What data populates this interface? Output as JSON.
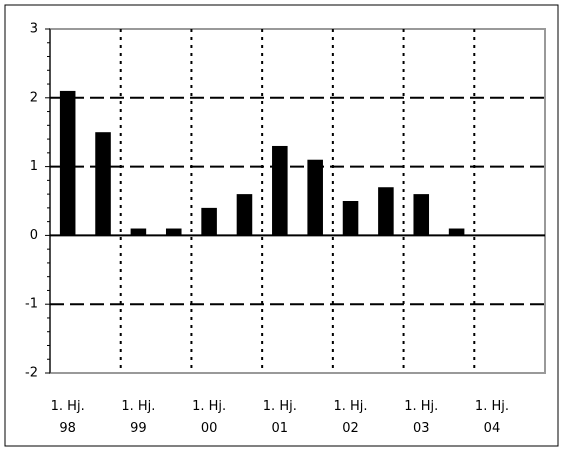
{
  "chart_data": {
    "type": "bar",
    "categories": [
      "1. Hj.\n98",
      null,
      "1. Hj.\n99",
      null,
      "1. Hj.\n00",
      null,
      "1. Hj.\n01",
      null,
      "1. Hj.\n02",
      null,
      "1. Hj.\n03",
      null,
      "1. Hj.\n04",
      null
    ],
    "values": [
      2.1,
      1.5,
      0.1,
      0.1,
      0.4,
      0.6,
      1.3,
      1.1,
      0.5,
      0.7,
      0.6,
      0.1,
      null,
      null
    ],
    "color": "#000000",
    "ylim": [
      -2,
      3
    ],
    "yticks": [
      -2,
      -1,
      0,
      1,
      2,
      3
    ],
    "grid": true
  }
}
